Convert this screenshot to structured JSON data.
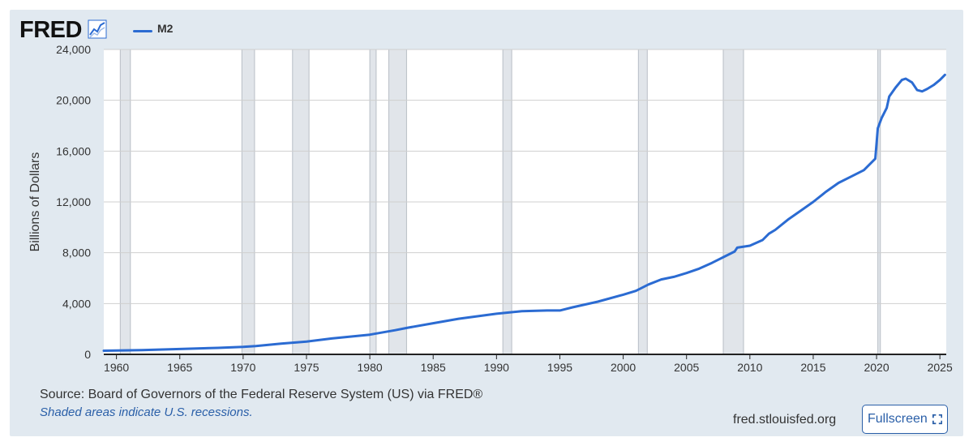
{
  "header": {
    "logo_text": "FRED",
    "logo_icon": "line-chart-icon",
    "legend_label": "M2"
  },
  "colors": {
    "background": "#e1e9f0",
    "plot_background": "#ffffff",
    "series": "#2b6bd2",
    "recession": "#e1e5ea",
    "gridline": "#cfcfcf"
  },
  "chart_data": {
    "type": "line",
    "title": "",
    "xlabel": "",
    "ylabel": "Billions of Dollars",
    "xlim": [
      1959.0,
      2025.5
    ],
    "ylim": [
      0,
      24000
    ],
    "grid": "horizontal",
    "legend": "top-left",
    "x_ticks": [
      "1960",
      "1965",
      "1970",
      "1975",
      "1980",
      "1985",
      "1990",
      "1995",
      "2000",
      "2005",
      "2010",
      "2015",
      "2020",
      "2025"
    ],
    "y_ticks": [
      "0",
      "4,000",
      "8,000",
      "12,000",
      "16,000",
      "20,000",
      "24,000"
    ],
    "recessions": [
      [
        1960.3,
        1961.1
      ],
      [
        1969.9,
        1970.9
      ],
      [
        1973.9,
        1975.2
      ],
      [
        1980.0,
        1980.5
      ],
      [
        1981.5,
        1982.9
      ],
      [
        1990.5,
        1991.2
      ],
      [
        2001.2,
        2001.9
      ],
      [
        2007.9,
        2009.5
      ],
      [
        2020.1,
        2020.3
      ]
    ],
    "series": [
      {
        "name": "M2",
        "x": [
          1959.0,
          1960.0,
          1962.0,
          1965.0,
          1968.0,
          1970.0,
          1971.0,
          1973.0,
          1975.0,
          1977.0,
          1980.0,
          1982.0,
          1983.0,
          1985.0,
          1987.0,
          1990.0,
          1992.0,
          1994.0,
          1995.0,
          1996.0,
          1998.0,
          2000.0,
          2001.0,
          2002.0,
          2003.0,
          2004.0,
          2005.0,
          2006.0,
          2007.0,
          2008.0,
          2008.8,
          2009.0,
          2010.0,
          2011.0,
          2011.5,
          2012.0,
          2013.0,
          2014.0,
          2015.0,
          2016.0,
          2017.0,
          2018.0,
          2019.0,
          2019.9,
          2020.1,
          2020.4,
          2020.8,
          2021.0,
          2021.5,
          2022.0,
          2022.3,
          2022.8,
          2023.2,
          2023.6,
          2024.0,
          2024.5,
          2025.0,
          2025.4
        ],
        "values": [
          290,
          300,
          340,
          420,
          510,
          590,
          650,
          850,
          1000,
          1250,
          1550,
          1900,
          2100,
          2450,
          2800,
          3200,
          3400,
          3450,
          3450,
          3700,
          4150,
          4700,
          5000,
          5500,
          5900,
          6100,
          6400,
          6750,
          7200,
          7700,
          8100,
          8400,
          8550,
          9000,
          9500,
          9800,
          10600,
          11300,
          12000,
          12800,
          13500,
          14000,
          14500,
          15400,
          17800,
          18600,
          19400,
          20300,
          21000,
          21600,
          21700,
          21400,
          20800,
          20700,
          20900,
          21200,
          21600,
          22000
        ]
      }
    ]
  },
  "footer": {
    "source": "Source: Board of Governors of the Federal Reserve System (US) via FRED®",
    "note": "Shaded areas indicate U.S. recessions.",
    "site": "fred.stlouisfed.org",
    "fullscreen_label": "Fullscreen",
    "fullscreen_icon": "fullscreen-icon"
  }
}
